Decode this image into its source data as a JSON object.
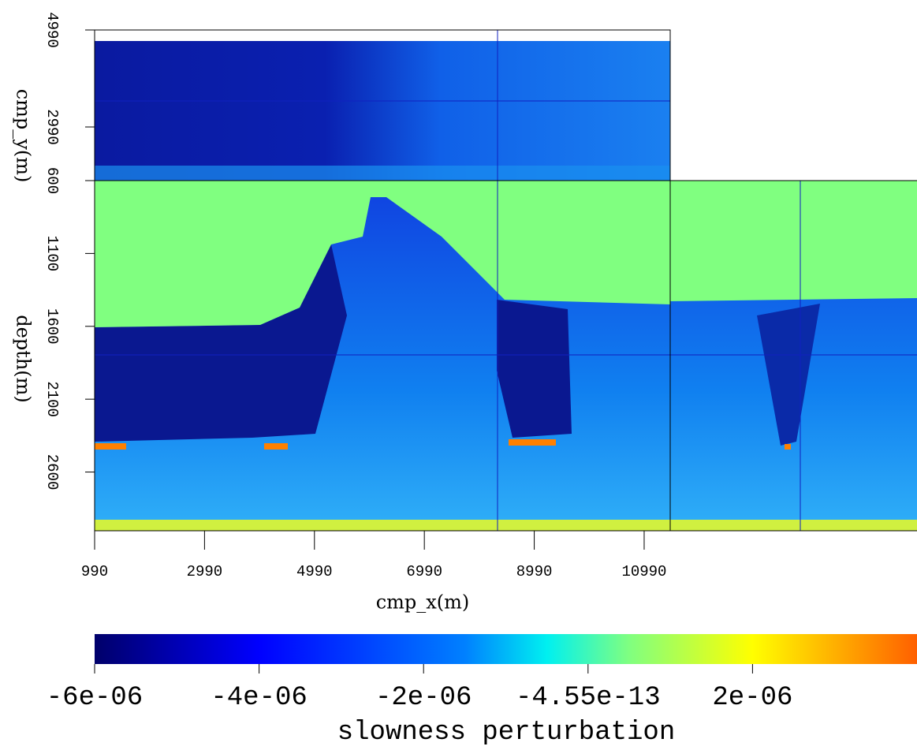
{
  "chart_data": {
    "type": "cube",
    "xlabel": "cmp_x(m)",
    "ylabel": "cmp_y(m)",
    "zlabel": "depth(m)",
    "xlim": [
      990,
      11464
    ],
    "xticks": [
      990,
      2990,
      4990,
      6990,
      8990,
      10990
    ],
    "ylim": [
      4990,
      1884
    ],
    "yticks": [
      4990,
      2990
    ],
    "zlim": [
      600,
      3003
    ],
    "zticks": [
      600,
      1100,
      1600,
      2100,
      2600
    ],
    "colorbar": {
      "label": "slowness perturbation",
      "lim": [
        -6e-06,
        4e-06
      ],
      "ticks": [
        {
          "value": -6e-06,
          "label": "-6e-06"
        },
        {
          "value": -4e-06,
          "label": "-4e-06"
        },
        {
          "value": -2e-06,
          "label": "-2e-06"
        },
        {
          "value": -4.55e-13,
          "label": "-4.55e-13"
        },
        {
          "value": 2e-06,
          "label": "2e-06"
        }
      ]
    }
  }
}
